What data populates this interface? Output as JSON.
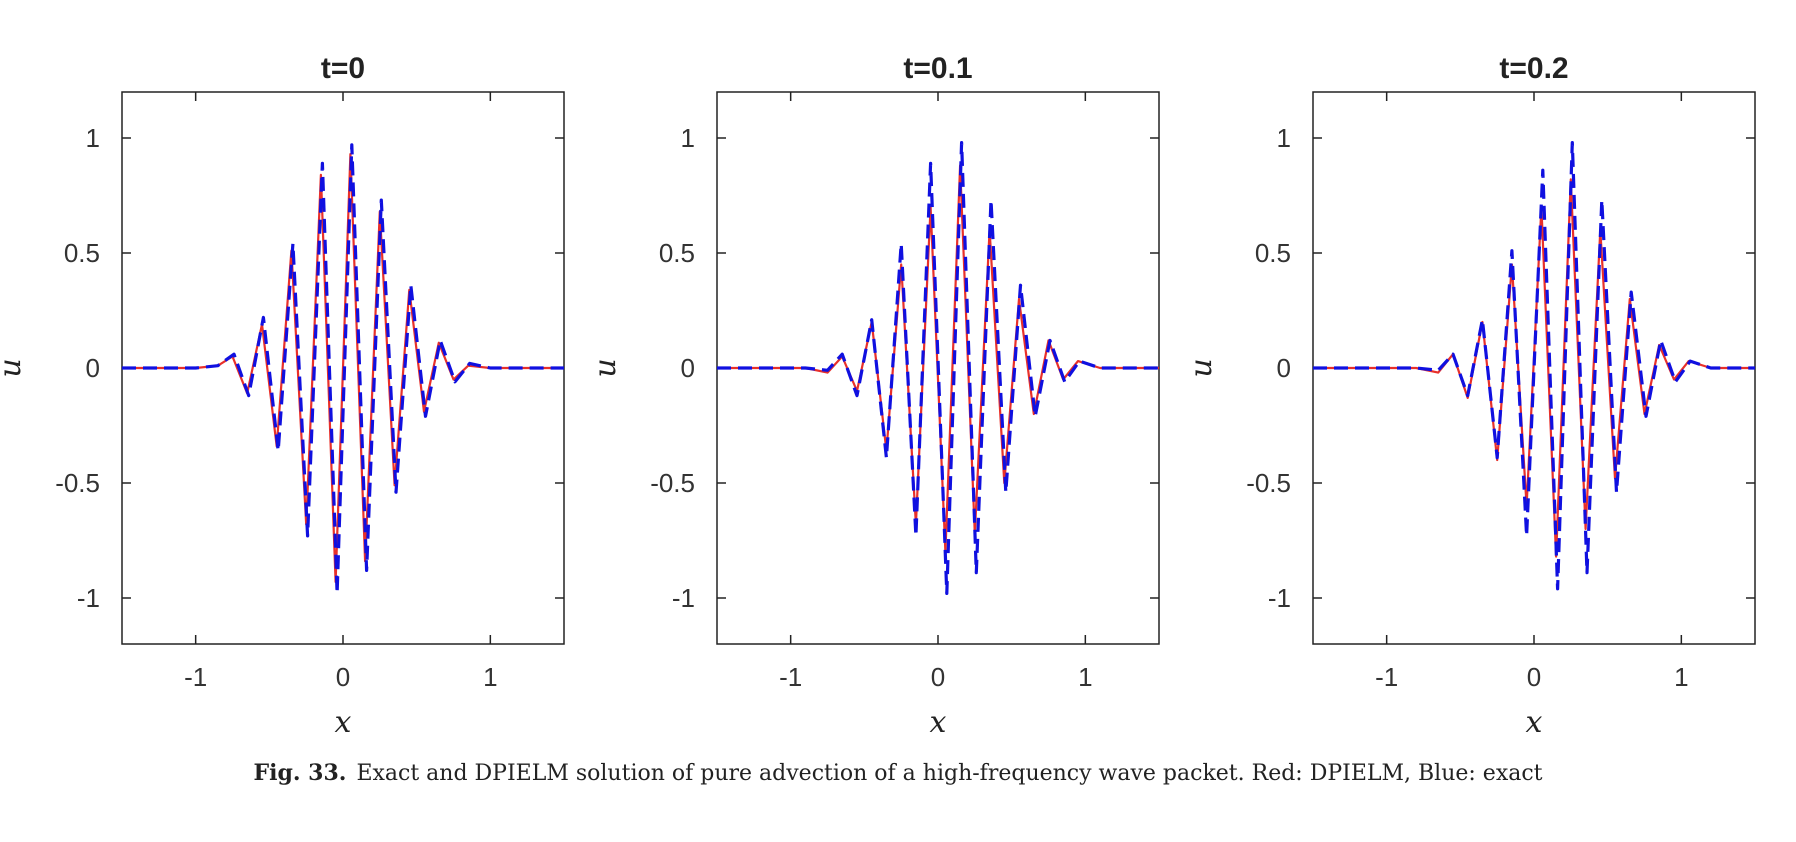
{
  "figure": {
    "caption_label": "Fig. 33.",
    "caption_text": "Exact and DPIELM solution of pure advection of a high-frequency wave packet. Red: DPIELM, Blue: exact"
  },
  "colors": {
    "dpielm": "#e8302a",
    "exact": "#1010e0",
    "axes": "#222222"
  },
  "chart_data": [
    {
      "type": "line",
      "title": "t=0",
      "xlabel": "x",
      "ylabel": "u",
      "xlim": [
        -1.5,
        1.5
      ],
      "ylim": [
        -1.2,
        1.2
      ],
      "xticks": [
        -1,
        0,
        1
      ],
      "xtick_labels": [
        "-1",
        "0",
        "1"
      ],
      "yticks": [
        -1,
        -0.5,
        0,
        0.5,
        1
      ],
      "ytick_labels": [
        "-1",
        "-0.5",
        "0",
        "0.5",
        "1"
      ],
      "series": [
        {
          "name": "DPIELM",
          "style": "solid",
          "color": "#e8302a",
          "x": [
            -1.5,
            -1.0,
            -0.85,
            -0.75,
            -0.65,
            -0.55,
            -0.45,
            -0.35,
            -0.25,
            -0.15,
            -0.05,
            0.05,
            0.15,
            0.25,
            0.35,
            0.45,
            0.55,
            0.65,
            0.75,
            0.85,
            1.0,
            1.5
          ],
          "y": [
            0,
            0,
            0.01,
            0.05,
            -0.11,
            0.19,
            -0.34,
            0.51,
            -0.68,
            0.84,
            -0.93,
            0.93,
            -0.84,
            0.68,
            -0.51,
            0.34,
            -0.19,
            0.11,
            -0.05,
            0.01,
            0,
            0
          ]
        },
        {
          "name": "exact",
          "style": "dashed",
          "color": "#1010e0",
          "x": [
            -1.5,
            -1.0,
            -0.85,
            -0.74,
            -0.64,
            -0.54,
            -0.44,
            -0.34,
            -0.24,
            -0.14,
            -0.04,
            0.06,
            0.16,
            0.26,
            0.36,
            0.46,
            0.56,
            0.66,
            0.76,
            0.86,
            1.0,
            1.5
          ],
          "y": [
            0,
            0,
            0.01,
            0.06,
            -0.12,
            0.22,
            -0.36,
            0.54,
            -0.73,
            0.89,
            -0.98,
            0.97,
            -0.88,
            0.73,
            -0.54,
            0.36,
            -0.21,
            0.12,
            -0.06,
            0.02,
            0,
            0
          ]
        }
      ]
    },
    {
      "type": "line",
      "title": "t=0.1",
      "xlabel": "x",
      "ylabel": "u",
      "xlim": [
        -1.5,
        1.5
      ],
      "ylim": [
        -1.2,
        1.2
      ],
      "xticks": [
        -1,
        0,
        1
      ],
      "xtick_labels": [
        "-1",
        "0",
        "1"
      ],
      "yticks": [
        -1,
        -0.5,
        0,
        0.5,
        1
      ],
      "ytick_labels": [
        "-1",
        "-0.5",
        "0",
        "0.5",
        "1"
      ],
      "series": [
        {
          "name": "DPIELM",
          "style": "solid",
          "color": "#e8302a",
          "x": [
            -1.5,
            -0.9,
            -0.75,
            -0.65,
            -0.55,
            -0.45,
            -0.35,
            -0.25,
            -0.15,
            -0.05,
            0.05,
            0.15,
            0.25,
            0.35,
            0.45,
            0.55,
            0.65,
            0.75,
            0.85,
            0.95,
            1.1,
            1.5
          ],
          "y": [
            0,
            0,
            -0.02,
            0.05,
            -0.1,
            0.2,
            -0.36,
            0.45,
            -0.68,
            0.7,
            -0.8,
            0.88,
            -0.72,
            0.6,
            -0.5,
            0.3,
            -0.2,
            0.12,
            -0.05,
            0.03,
            0,
            0
          ]
        },
        {
          "name": "exact",
          "style": "dashed",
          "color": "#1010e0",
          "x": [
            -1.5,
            -0.9,
            -0.75,
            -0.65,
            -0.55,
            -0.45,
            -0.35,
            -0.25,
            -0.15,
            -0.05,
            0.06,
            0.16,
            0.26,
            0.36,
            0.46,
            0.56,
            0.66,
            0.76,
            0.86,
            0.96,
            1.1,
            1.5
          ],
          "y": [
            0,
            0,
            -0.01,
            0.06,
            -0.12,
            0.21,
            -0.39,
            0.54,
            -0.73,
            0.89,
            -0.98,
            0.98,
            -0.89,
            0.73,
            -0.54,
            0.36,
            -0.21,
            0.12,
            -0.06,
            0.03,
            0,
            0
          ]
        }
      ]
    },
    {
      "type": "line",
      "title": "t=0.2",
      "xlabel": "x",
      "ylabel": "u",
      "xlim": [
        -1.5,
        1.5
      ],
      "ylim": [
        -1.2,
        1.2
      ],
      "xticks": [
        -1,
        0,
        1
      ],
      "xtick_labels": [
        "-1",
        "0",
        "1"
      ],
      "yticks": [
        -1,
        -0.5,
        0,
        0.5,
        1
      ],
      "ytick_labels": [
        "-1",
        "-0.5",
        "0",
        "0.5",
        "1"
      ],
      "series": [
        {
          "name": "DPIELM",
          "style": "solid",
          "color": "#e8302a",
          "x": [
            -1.5,
            -0.8,
            -0.65,
            -0.55,
            -0.45,
            -0.35,
            -0.25,
            -0.15,
            -0.05,
            0.05,
            0.15,
            0.25,
            0.35,
            0.45,
            0.55,
            0.65,
            0.75,
            0.85,
            0.95,
            1.05,
            1.2,
            1.5
          ],
          "y": [
            0,
            0,
            -0.02,
            0.06,
            -0.13,
            0.2,
            -0.4,
            0.45,
            -0.6,
            0.7,
            -0.82,
            0.82,
            -0.7,
            0.6,
            -0.48,
            0.3,
            -0.2,
            0.1,
            -0.05,
            0.03,
            0,
            0
          ]
        },
        {
          "name": "exact",
          "style": "dashed",
          "color": "#1010e0",
          "x": [
            -1.5,
            -0.8,
            -0.65,
            -0.55,
            -0.45,
            -0.35,
            -0.25,
            -0.15,
            -0.05,
            0.06,
            0.16,
            0.26,
            0.36,
            0.46,
            0.56,
            0.66,
            0.76,
            0.86,
            0.96,
            1.06,
            1.2,
            1.5
          ],
          "y": [
            0,
            0,
            -0.01,
            0.06,
            -0.12,
            0.21,
            -0.39,
            0.51,
            -0.73,
            0.86,
            -0.96,
            0.98,
            -0.89,
            0.73,
            -0.54,
            0.33,
            -0.21,
            0.12,
            -0.06,
            0.03,
            0,
            0
          ]
        }
      ]
    }
  ]
}
